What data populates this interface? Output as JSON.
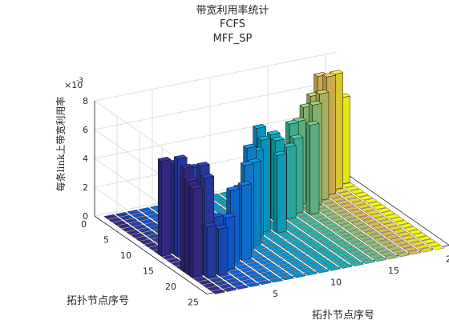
{
  "chart_data": {
    "type": "bar3",
    "title": [
      "带宽利用率统计",
      "FCFS",
      "MFF_SP"
    ],
    "xlabel": "拓扑节点序号",
    "ylabel": "拓扑节点序号",
    "zlabel": "每条link上带宽利用率",
    "z_exponent_label": "×10",
    "z_exponent": "-3",
    "xlim": [
      0,
      21
    ],
    "ylim": [
      0,
      25
    ],
    "zlim": [
      0,
      0.008
    ],
    "x_ticks": [
      "5",
      "10",
      "15",
      "20"
    ],
    "y_ticks": [
      "0",
      "5",
      "10",
      "15",
      "20",
      "25"
    ],
    "z_ticks": [
      "0",
      "2",
      "4",
      "6",
      "8"
    ],
    "grid": "on",
    "colormap": "parula",
    "note": "Estimated bar heights (units of 1e-3), rows = y (node index), cols = x (node index); values read from 3D projection",
    "bars": [
      {
        "x": 1,
        "y": 18,
        "z": 0.0072
      },
      {
        "x": 1,
        "y": 19,
        "z": 0.0065
      },
      {
        "x": 1,
        "y": 20,
        "z": 0.0062
      },
      {
        "x": 2,
        "y": 19,
        "z": 0.0074
      },
      {
        "x": 2,
        "y": 20,
        "z": 0.0068
      },
      {
        "x": 1,
        "y": 13,
        "z": 0.0066
      },
      {
        "x": 2,
        "y": 13,
        "z": 0.0063
      },
      {
        "x": 2,
        "y": 14,
        "z": 0.0068
      },
      {
        "x": 3,
        "y": 14,
        "z": 0.006
      },
      {
        "x": 2,
        "y": 20.5,
        "z": 0.0035
      },
      {
        "x": 3,
        "y": 20.5,
        "z": 0.0032
      },
      {
        "x": 3,
        "y": 19.5,
        "z": 0.0038
      },
      {
        "x": 4,
        "y": 19.5,
        "z": 0.0036
      },
      {
        "x": 5,
        "y": 18,
        "z": 0.005
      },
      {
        "x": 6,
        "y": 18,
        "z": 0.0052
      },
      {
        "x": 6,
        "y": 17,
        "z": 0.0048
      },
      {
        "x": 7,
        "y": 16,
        "z": 0.006
      },
      {
        "x": 8,
        "y": 15,
        "z": 0.0058
      },
      {
        "x": 8,
        "y": 14,
        "z": 0.0066
      },
      {
        "x": 9,
        "y": 13,
        "z": 0.006
      },
      {
        "x": 10,
        "y": 12,
        "z": 0.0064
      },
      {
        "x": 10,
        "y": 11,
        "z": 0.007
      },
      {
        "x": 11,
        "y": 13,
        "z": 0.0054
      },
      {
        "x": 12,
        "y": 10,
        "z": 0.0056
      },
      {
        "x": 12,
        "y": 9,
        "z": 0.0058
      },
      {
        "x": 13,
        "y": 10,
        "z": 0.005
      },
      {
        "x": 14,
        "y": 9,
        "z": 0.0052
      },
      {
        "x": 14,
        "y": 8,
        "z": 0.006
      },
      {
        "x": 15,
        "y": 10,
        "z": 0.0062
      },
      {
        "x": 15,
        "y": 7,
        "z": 0.0058
      },
      {
        "x": 16,
        "y": 6,
        "z": 0.0064
      },
      {
        "x": 16,
        "y": 8,
        "z": 0.007
      },
      {
        "x": 17,
        "y": 7,
        "z": 0.0074
      },
      {
        "x": 17,
        "y": 5,
        "z": 0.0068
      },
      {
        "x": 18,
        "y": 6,
        "z": 0.0082
      },
      {
        "x": 18,
        "y": 4,
        "z": 0.0078
      },
      {
        "x": 19,
        "y": 5,
        "z": 0.008
      },
      {
        "x": 19,
        "y": 3,
        "z": 0.0072
      },
      {
        "x": 20,
        "y": 4,
        "z": 0.006
      },
      {
        "x": 20,
        "y": 2,
        "z": 0.0055
      }
    ]
  }
}
